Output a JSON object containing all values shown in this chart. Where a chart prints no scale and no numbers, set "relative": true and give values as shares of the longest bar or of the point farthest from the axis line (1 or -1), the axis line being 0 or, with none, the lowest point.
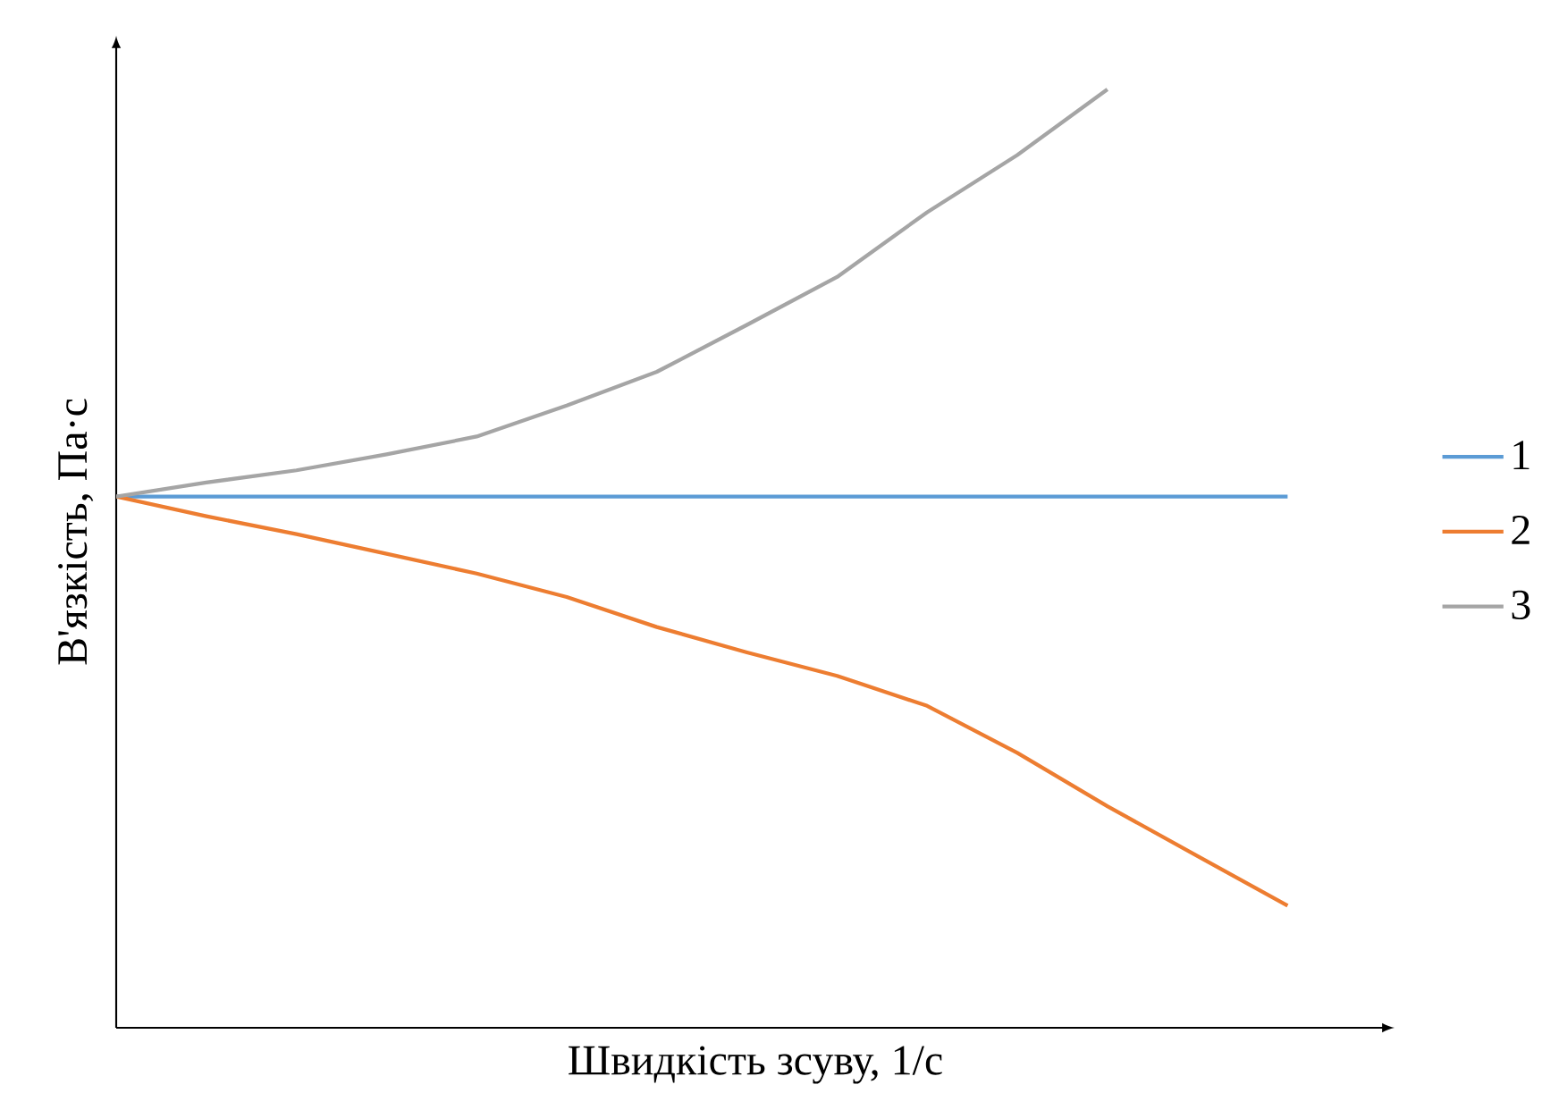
{
  "chart_data": {
    "type": "line",
    "relative": true,
    "xlabel": "Швидкість зсуву, 1/с",
    "ylabel": "В'язкість, Па·с",
    "legend": "right",
    "marker": "none",
    "categories": [
      null,
      null,
      null,
      null,
      null,
      null,
      null,
      null,
      null,
      null,
      null,
      null,
      null,
      null
    ],
    "series": [
      {
        "name": "1",
        "color": "#5b9bd5",
        "values": [
          0.566,
          0.566,
          0.566,
          0.566,
          0.566,
          0.566,
          0.566,
          0.566,
          0.566,
          0.566,
          0.566,
          0.566,
          0.566,
          0.566
        ]
      },
      {
        "name": "2",
        "color": "#ed7d31",
        "values": [
          0.566,
          0.545,
          0.526,
          0.505,
          0.484,
          0.459,
          0.427,
          0.4,
          0.375,
          0.343,
          0.293,
          0.236,
          0.183,
          0.13
        ]
      },
      {
        "name": "3",
        "color": "#a5a5a5",
        "values": [
          0.566,
          0.581,
          0.594,
          0.611,
          0.63,
          0.663,
          0.699,
          0.749,
          0.8,
          0.869,
          0.93,
          1.0,
          null,
          null
        ]
      }
    ]
  }
}
